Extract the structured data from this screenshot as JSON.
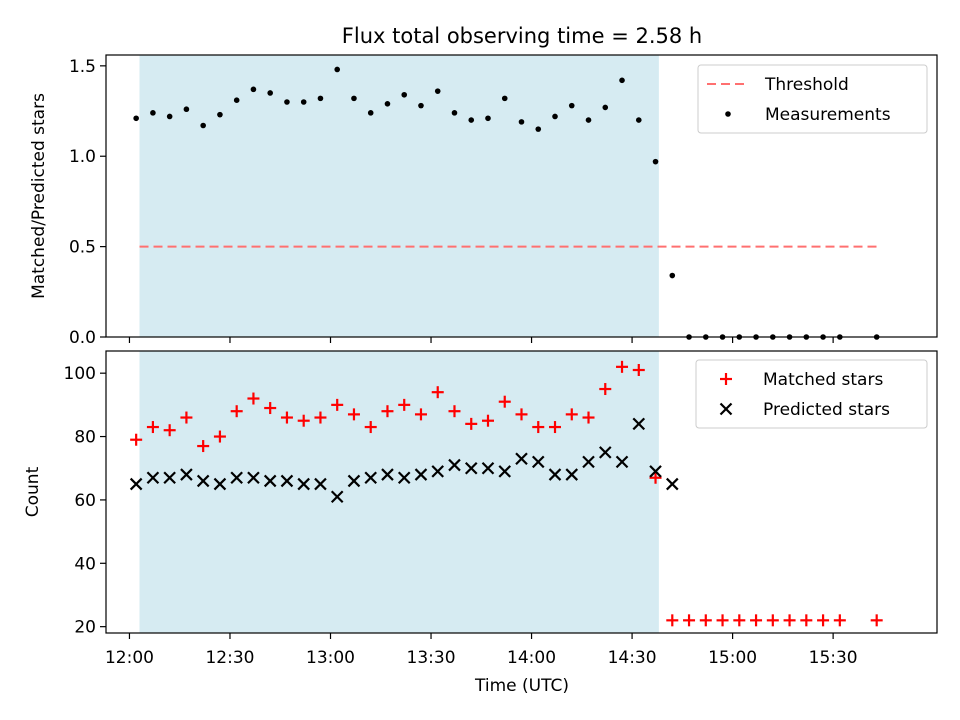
{
  "title": "Flux total observing time = 2.58 h",
  "colors": {
    "shade": "#add8e6",
    "threshold": "#ff7070",
    "matched": "#ff0000",
    "predicted": "#000000",
    "measurements": "#000000"
  },
  "chart_data": [
    {
      "type": "scatter",
      "panel": "top",
      "title": "Flux total observing time = 2.58 h",
      "ylabel": "Matched/Predicted stars",
      "xlabel": "",
      "ylim": [
        0,
        1.56
      ],
      "yticks": [
        0.0,
        0.5,
        1.0,
        1.5
      ],
      "ytick_labels": [
        "0.0",
        "0.5",
        "1.0",
        "1.5"
      ],
      "shaded_interval": [
        "12:03",
        "14:38"
      ],
      "threshold": {
        "name": "Threshold",
        "value": 0.5,
        "x_range": [
          "12:03",
          "15:44"
        ],
        "style": "dashed"
      },
      "legend": {
        "placement": "upper right",
        "entries": [
          "Threshold",
          "Measurements"
        ]
      },
      "series": [
        {
          "name": "Measurements",
          "marker": "dot",
          "x": [
            "12:02",
            "12:07",
            "12:12",
            "12:17",
            "12:22",
            "12:27",
            "12:32",
            "12:37",
            "12:42",
            "12:47",
            "12:52",
            "12:57",
            "13:02",
            "13:07",
            "13:12",
            "13:17",
            "13:22",
            "13:27",
            "13:32",
            "13:37",
            "13:42",
            "13:47",
            "13:52",
            "13:57",
            "14:02",
            "14:07",
            "14:12",
            "14:17",
            "14:22",
            "14:27",
            "14:32",
            "14:37",
            "14:42",
            "14:47",
            "14:52",
            "14:57",
            "15:02",
            "15:07",
            "15:12",
            "15:17",
            "15:22",
            "15:27",
            "15:32",
            "15:43"
          ],
          "y": [
            1.21,
            1.24,
            1.22,
            1.26,
            1.17,
            1.23,
            1.31,
            1.37,
            1.35,
            1.3,
            1.3,
            1.32,
            1.48,
            1.32,
            1.24,
            1.29,
            1.34,
            1.28,
            1.36,
            1.24,
            1.2,
            1.21,
            1.32,
            1.19,
            1.15,
            1.22,
            1.28,
            1.2,
            1.27,
            1.42,
            1.2,
            0.97,
            0.34,
            0.0,
            0.0,
            0.0,
            0.0,
            0.0,
            0.0,
            0.0,
            0.0,
            0.0,
            0.0,
            0.0
          ]
        }
      ]
    },
    {
      "type": "scatter",
      "panel": "bottom",
      "ylabel": "Count",
      "xlabel": "Time (UTC)",
      "ylim": [
        18,
        107
      ],
      "yticks": [
        20,
        40,
        60,
        80,
        100
      ],
      "ytick_labels": [
        "20",
        "40",
        "60",
        "80",
        "100"
      ],
      "xlim": [
        "11:53",
        "16:01"
      ],
      "xticks": [
        "12:00",
        "12:30",
        "13:00",
        "13:30",
        "14:00",
        "14:30",
        "15:00",
        "15:30"
      ],
      "xtick_labels": [
        "12:00",
        "12:30",
        "13:00",
        "13:30",
        "14:00",
        "14:30",
        "15:00",
        "15:30"
      ],
      "shaded_interval": [
        "12:03",
        "14:38"
      ],
      "legend": {
        "placement": "upper right",
        "entries": [
          "Matched stars",
          "Predicted stars"
        ]
      },
      "series": [
        {
          "name": "Matched stars",
          "marker": "plus",
          "x": [
            "12:02",
            "12:07",
            "12:12",
            "12:17",
            "12:22",
            "12:27",
            "12:32",
            "12:37",
            "12:42",
            "12:47",
            "12:52",
            "12:57",
            "13:02",
            "13:07",
            "13:12",
            "13:17",
            "13:22",
            "13:27",
            "13:32",
            "13:37",
            "13:42",
            "13:47",
            "13:52",
            "13:57",
            "14:02",
            "14:07",
            "14:12",
            "14:17",
            "14:22",
            "14:27",
            "14:32",
            "14:37",
            "14:42",
            "14:47",
            "14:52",
            "14:57",
            "15:02",
            "15:07",
            "15:12",
            "15:17",
            "15:22",
            "15:27",
            "15:32",
            "15:43"
          ],
          "y": [
            79,
            83,
            82,
            86,
            77,
            80,
            88,
            92,
            89,
            86,
            85,
            86,
            90,
            87,
            83,
            88,
            90,
            87,
            94,
            88,
            84,
            85,
            91,
            87,
            83,
            83,
            87,
            86,
            95,
            102,
            101,
            67,
            22,
            22,
            22,
            22,
            22,
            22,
            22,
            22,
            22,
            22,
            22,
            22
          ]
        },
        {
          "name": "Predicted stars",
          "marker": "x",
          "x": [
            "12:02",
            "12:07",
            "12:12",
            "12:17",
            "12:22",
            "12:27",
            "12:32",
            "12:37",
            "12:42",
            "12:47",
            "12:52",
            "12:57",
            "13:02",
            "13:07",
            "13:12",
            "13:17",
            "13:22",
            "13:27",
            "13:32",
            "13:37",
            "13:42",
            "13:47",
            "13:52",
            "13:57",
            "14:02",
            "14:07",
            "14:12",
            "14:17",
            "14:22",
            "14:27",
            "14:32",
            "14:37",
            "14:42"
          ],
          "y": [
            65,
            67,
            67,
            68,
            66,
            65,
            67,
            67,
            66,
            66,
            65,
            65,
            61,
            66,
            67,
            68,
            67,
            68,
            69,
            71,
            70,
            70,
            69,
            73,
            72,
            68,
            68,
            72,
            75,
            72,
            84,
            69,
            65
          ]
        }
      ]
    }
  ]
}
